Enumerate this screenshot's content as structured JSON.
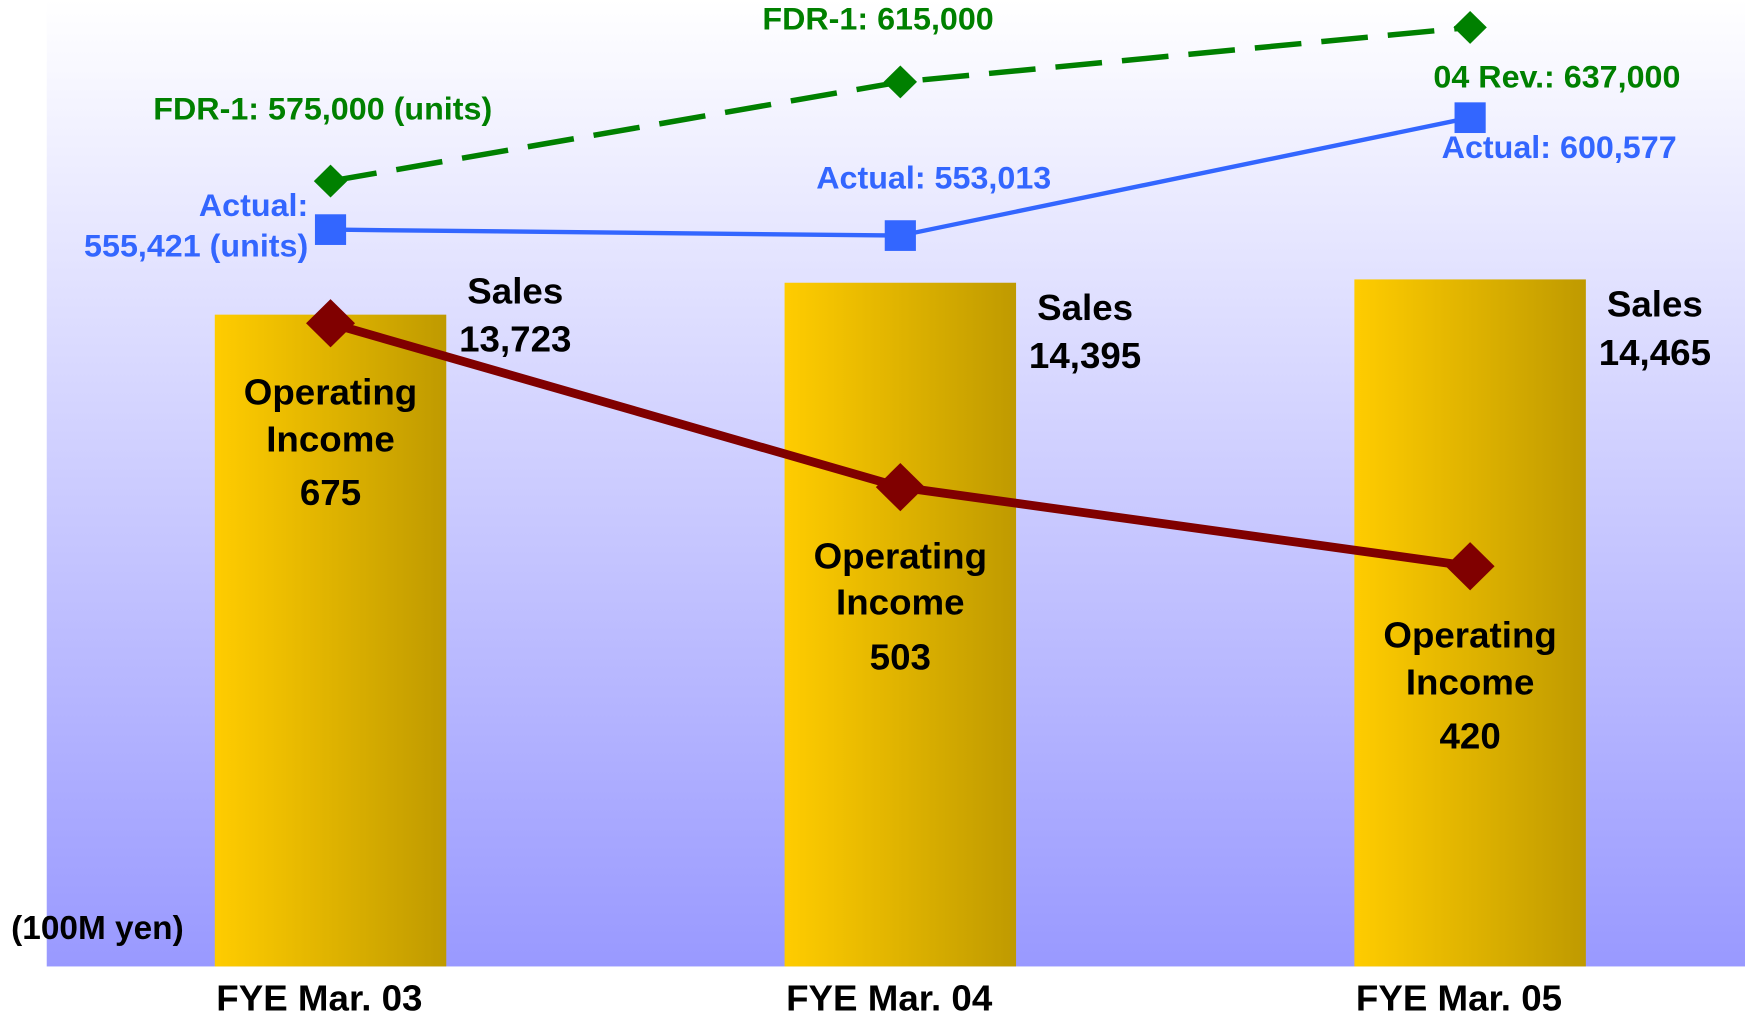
{
  "chart_data": {
    "type": "bar",
    "categories": [
      "FYE Mar. 03",
      "FYE Mar. 04",
      "FYE Mar. 05"
    ],
    "unit_label": "(100M yen)",
    "series": [
      {
        "name": "Sales",
        "type": "bar",
        "color": "#ffcc00",
        "values": [
          13723,
          14395,
          14465
        ],
        "value_labels": [
          "13,723",
          "14,395",
          "14,465"
        ]
      },
      {
        "name": "Operating Income",
        "type": "line",
        "color": "#800000",
        "values": [
          675,
          503,
          420
        ]
      },
      {
        "type": "line",
        "color": "#3366ff",
        "values": [
          555421,
          553013,
          600577
        ],
        "value_labels": [
          "Actual:\n555,421 (units)",
          "Actual: 553,013",
          "Actual: 600,577"
        ]
      },
      {
        "type": "line",
        "color": "#008000",
        "dashed": true,
        "values": [
          575000,
          615000,
          637000
        ],
        "value_labels": [
          "FDR-1: 575,000 (units)",
          "FDR-1: 615,000",
          "04 Rev.: 637,000"
        ]
      }
    ]
  }
}
